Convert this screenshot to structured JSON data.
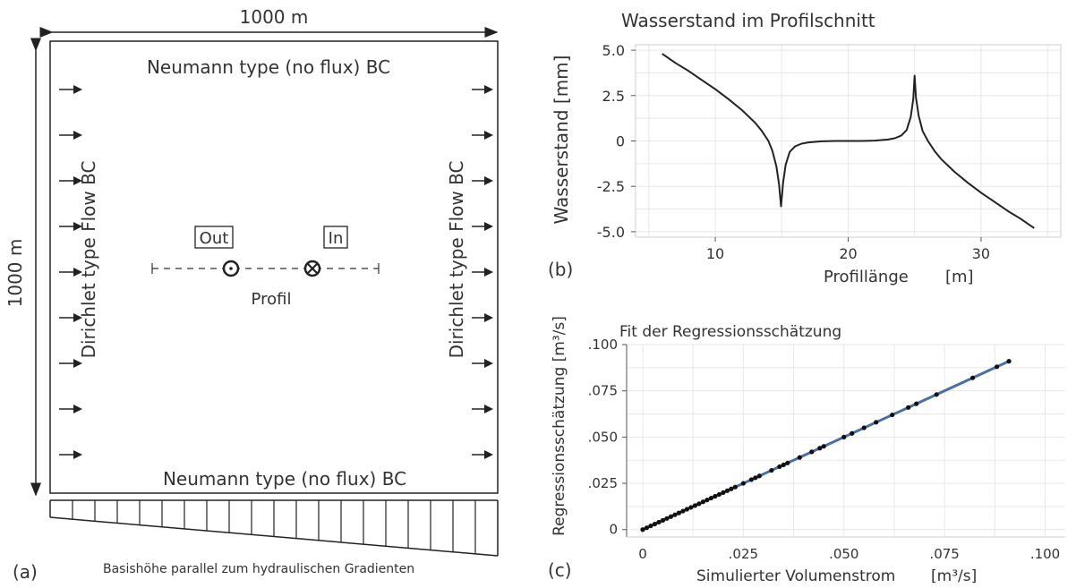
{
  "panel_a": {
    "width_label": "1000 m",
    "height_label": "1000 m",
    "top_bc": "Neumann type (no flux) BC",
    "bottom_bc": "Neumann type (no flux) BC",
    "left_bc": "Dirichlet type Flow BC",
    "right_bc": "Dirichlet type Flow BC",
    "out_label": "Out",
    "in_label": "In",
    "profile_label": "Profil",
    "panel_letter": "(a)",
    "base_caption": "Basishöhe parallel zum hydraulischen Gradienten",
    "arrow_count": 9,
    "hatch_count": 20
  },
  "panel_b": {
    "panel_letter": "(b)"
  },
  "panel_c": {
    "panel_letter": "(c)"
  },
  "chart_data": [
    {
      "id": "b",
      "type": "line",
      "title": "Wasserstand im Profilschnitt",
      "xlabel": "Profillänge",
      "xunit": "[m]",
      "ylabel": "Wasserstand [mm]",
      "xlim": [
        4,
        36
      ],
      "ylim": [
        -5.3,
        5.3
      ],
      "xticks": [
        "10",
        "20",
        "30"
      ],
      "xtick_values": [
        10,
        20,
        30
      ],
      "yticks": [
        "5.0",
        "2.5",
        "0",
        "-2.5",
        "-5.0"
      ],
      "ytick_values": [
        5.0,
        2.5,
        0,
        -2.5,
        -5.0
      ],
      "grid": true,
      "line_color": "#222222",
      "series": [
        {
          "x": [
            6,
            7,
            8,
            9,
            10,
            11,
            12,
            13,
            13.5,
            14,
            14.3,
            14.6,
            14.8,
            14.95,
            15.1,
            15.3,
            15.6,
            16,
            16.5,
            17,
            18,
            19,
            20,
            21,
            22,
            23,
            23.5,
            24,
            24.4,
            24.7,
            24.9,
            25.0,
            25.1,
            25.3,
            25.6,
            26,
            26.5,
            27,
            28,
            29,
            30,
            31,
            32,
            33,
            34
          ],
          "y": [
            4.8,
            4.3,
            3.85,
            3.35,
            2.85,
            2.3,
            1.7,
            1.0,
            0.55,
            0.0,
            -0.55,
            -1.4,
            -2.4,
            -3.6,
            -2.3,
            -1.3,
            -0.6,
            -0.3,
            -0.15,
            -0.08,
            -0.02,
            0.0,
            0.0,
            0.0,
            0.02,
            0.08,
            0.15,
            0.3,
            0.6,
            1.3,
            2.3,
            3.6,
            2.4,
            1.4,
            0.55,
            0.0,
            -0.55,
            -1.0,
            -1.7,
            -2.3,
            -2.85,
            -3.35,
            -3.85,
            -4.3,
            -4.8
          ]
        }
      ]
    },
    {
      "id": "c",
      "type": "scatter",
      "title": "Fit der Regressionsschätzung",
      "xlabel": "Simulierter Volumenstrom",
      "xunit": "[m³/s]",
      "ylabel": "Regressionsschätzung [m³/s]",
      "xlim": [
        -0.004,
        0.105
      ],
      "ylim": [
        -0.004,
        0.1
      ],
      "xticks": [
        "0",
        ".025",
        ".050",
        ".075",
        ".100"
      ],
      "xtick_values": [
        0,
        0.025,
        0.05,
        0.075,
        0.1
      ],
      "yticks": [
        ".100",
        ".075",
        ".050",
        ".025",
        "0"
      ],
      "ytick_values": [
        0.1,
        0.075,
        0.05,
        0.025,
        0
      ],
      "grid": true,
      "fit_color": "#4a6fa5",
      "point_color": "#111111",
      "fit_line": [
        [
          0,
          0
        ],
        [
          0.091,
          0.091
        ]
      ],
      "points_x": [
        0,
        0.001,
        0.002,
        0.003,
        0.004,
        0.005,
        0.006,
        0.007,
        0.008,
        0.009,
        0.01,
        0.011,
        0.012,
        0.013,
        0.014,
        0.015,
        0.016,
        0.017,
        0.018,
        0.019,
        0.02,
        0.021,
        0.022,
        0.023,
        0.025,
        0.027,
        0.028,
        0.029,
        0.032,
        0.034,
        0.035,
        0.036,
        0.039,
        0.042,
        0.044,
        0.045,
        0.05,
        0.052,
        0.055,
        0.058,
        0.062,
        0.066,
        0.068,
        0.073,
        0.082,
        0.088,
        0.091
      ]
    }
  ]
}
